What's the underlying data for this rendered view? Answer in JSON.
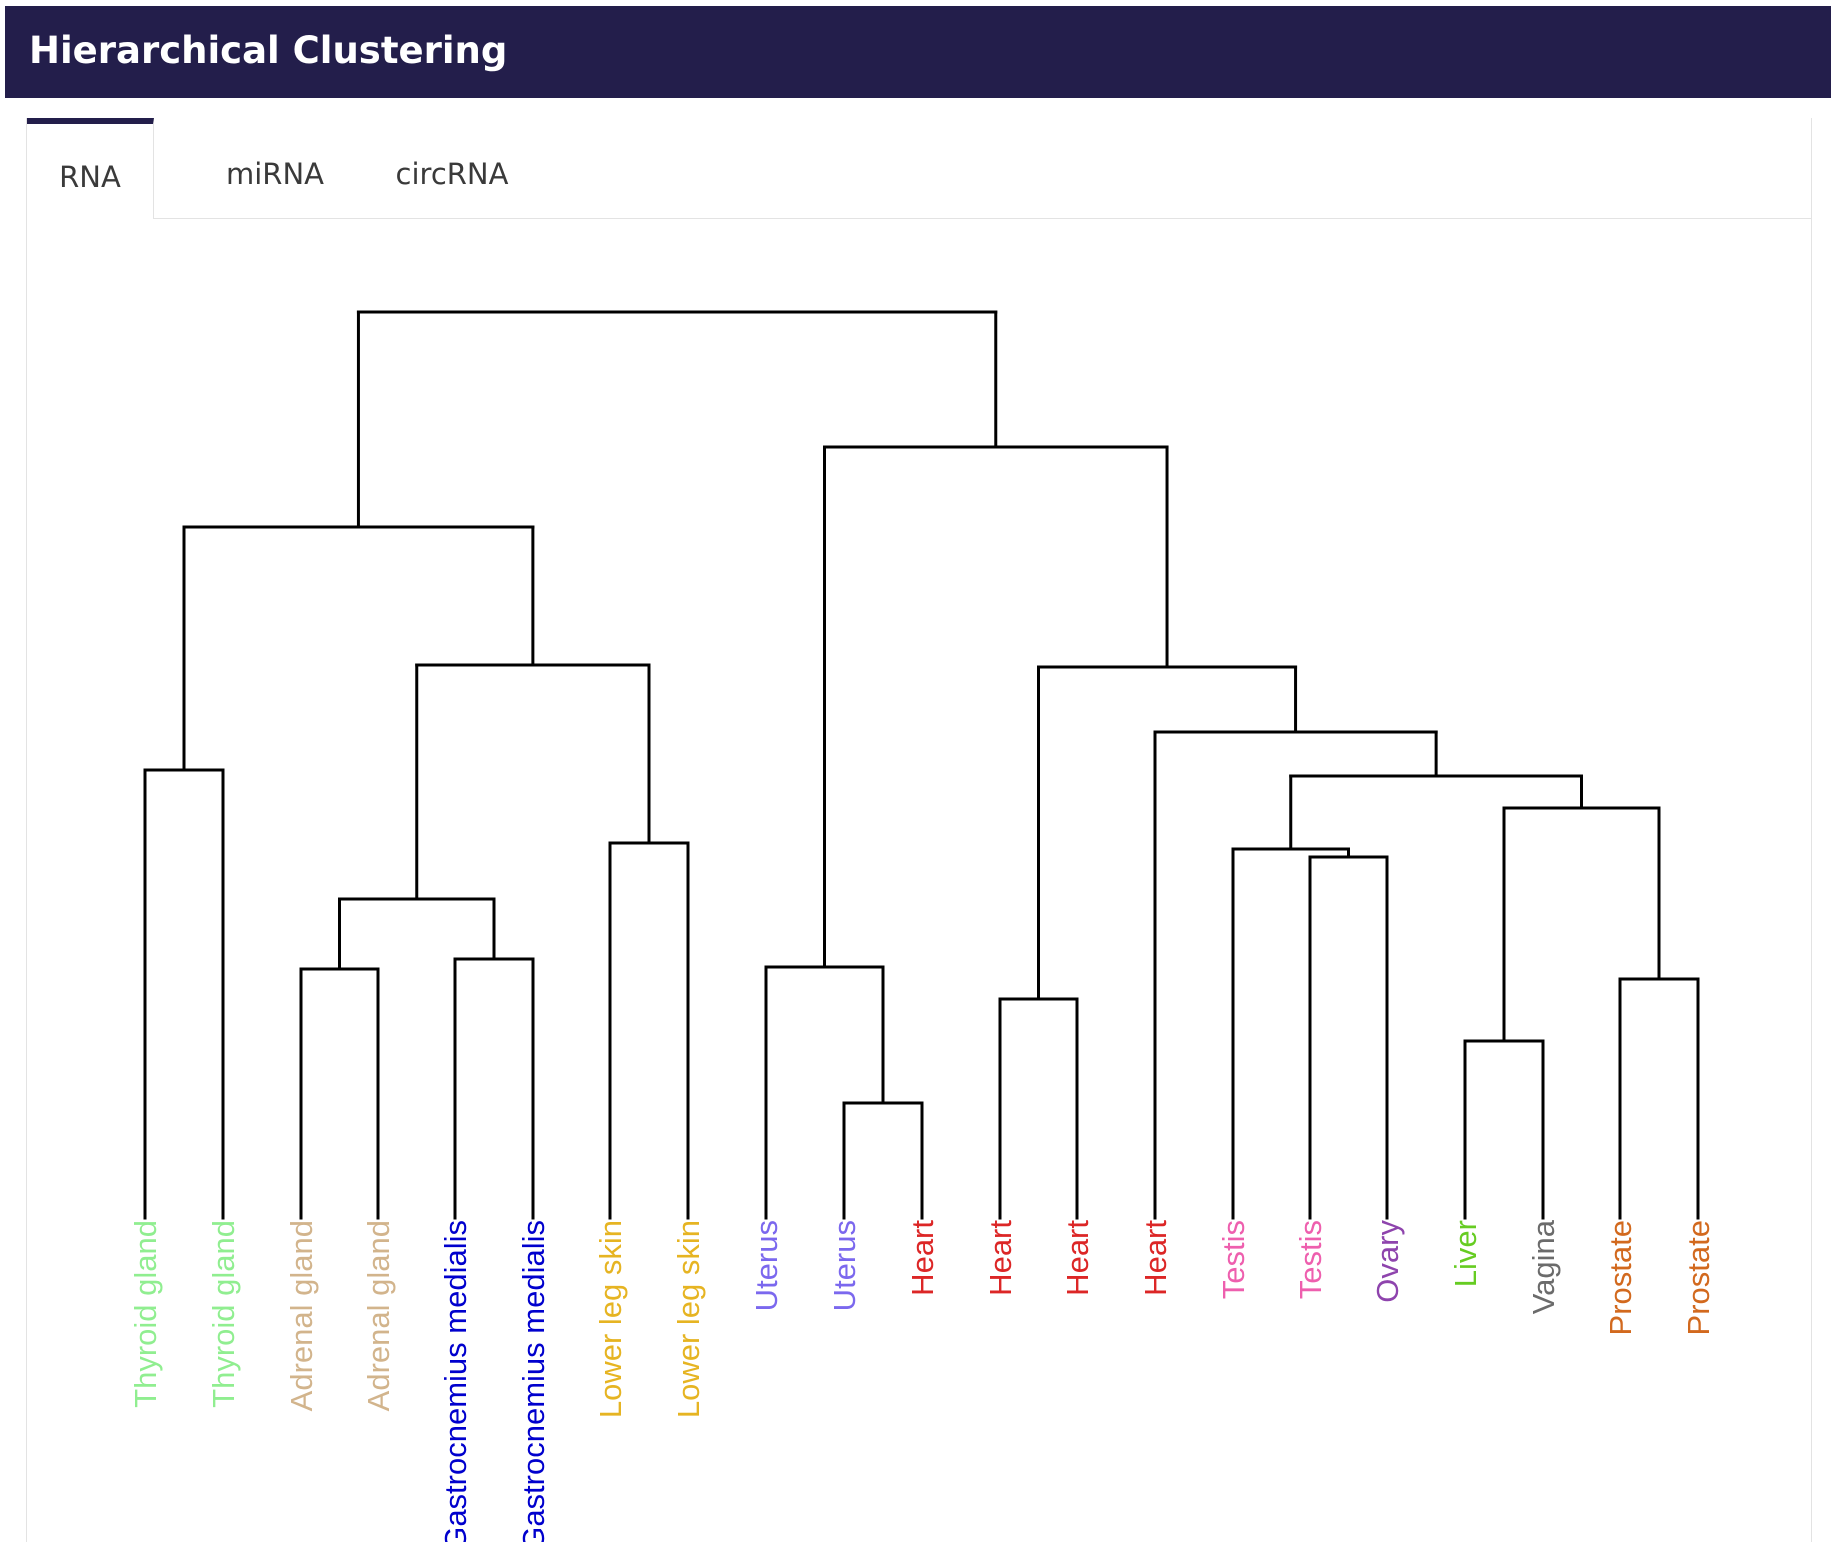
{
  "header": {
    "title": "Hierarchical Clustering"
  },
  "tabs": [
    {
      "label": "RNA",
      "active": true
    },
    {
      "label": "miRNA",
      "active": false
    },
    {
      "label": "circRNA",
      "active": false
    }
  ],
  "dendrogram": {
    "leaves": [
      {
        "label": "Thyroid gland",
        "color": "#90ee90"
      },
      {
        "label": "Thyroid gland",
        "color": "#90ee90"
      },
      {
        "label": "Adrenal gland",
        "color": "#d2b48c"
      },
      {
        "label": "Adrenal gland",
        "color": "#d2b48c"
      },
      {
        "label": "Gastrocnemius medialis",
        "color": "#0000cd"
      },
      {
        "label": "Gastrocnemius medialis",
        "color": "#0000cd"
      },
      {
        "label": "Lower leg skin",
        "color": "#e6b422"
      },
      {
        "label": "Lower leg skin",
        "color": "#e6b422"
      },
      {
        "label": "Uterus",
        "color": "#7b68ee"
      },
      {
        "label": "Uterus",
        "color": "#7b68ee"
      },
      {
        "label": "Heart",
        "color": "#dc2626"
      },
      {
        "label": "Heart",
        "color": "#dc2626"
      },
      {
        "label": "Heart",
        "color": "#dc2626"
      },
      {
        "label": "Heart",
        "color": "#dc2626"
      },
      {
        "label": "Testis",
        "color": "#ee5fae"
      },
      {
        "label": "Testis",
        "color": "#ee5fae"
      },
      {
        "label": "Ovary",
        "color": "#8e44ad"
      },
      {
        "label": "Liver",
        "color": "#66cc22"
      },
      {
        "label": "Vagina",
        "color": "#6b6b6b"
      },
      {
        "label": "Prostate",
        "color": "#d2691e"
      },
      {
        "label": "Prostate",
        "color": "#d2691e"
      }
    ]
  }
}
